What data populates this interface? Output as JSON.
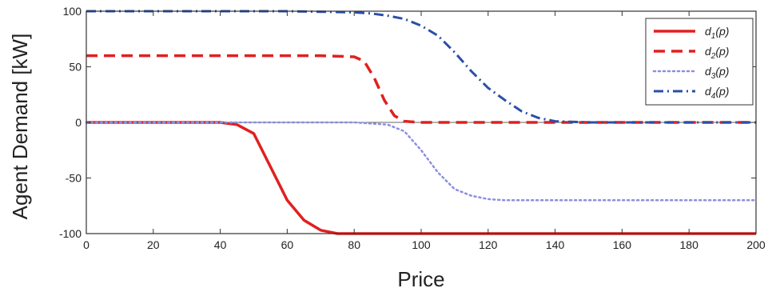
{
  "chart_data": {
    "type": "line",
    "title": "",
    "xlabel": "Price",
    "ylabel": "Agent Demand [kW]",
    "xlim": [
      0,
      200
    ],
    "ylim": [
      -100,
      100
    ],
    "xticks": [
      0,
      20,
      40,
      60,
      80,
      100,
      120,
      140,
      160,
      180,
      200
    ],
    "yticks": [
      -100,
      -50,
      0,
      50,
      100
    ],
    "grid": false,
    "legend_position": "top-right",
    "zero_line": true,
    "series": [
      {
        "name": "d1(p)",
        "legend_main": "d",
        "legend_sub": "1",
        "legend_tail": "(p)",
        "color": "#e02020",
        "style": "solid",
        "x": [
          0,
          10,
          20,
          30,
          40,
          45,
          50,
          55,
          60,
          65,
          70,
          75,
          80,
          90,
          100,
          120,
          140,
          160,
          180,
          200
        ],
        "y": [
          0,
          0,
          0,
          0,
          0,
          -2,
          -10,
          -40,
          -70,
          -88,
          -97,
          -100,
          -100,
          -100,
          -100,
          -100,
          -100,
          -100,
          -100,
          -100
        ]
      },
      {
        "name": "d2(p)",
        "legend_main": "d",
        "legend_sub": "2",
        "legend_tail": "(p)",
        "color": "#e02020",
        "style": "dashed",
        "x": [
          0,
          20,
          40,
          60,
          70,
          80,
          83,
          86,
          89,
          92,
          95,
          100,
          120,
          140,
          160,
          180,
          200
        ],
        "y": [
          60,
          60,
          60,
          60,
          60,
          59,
          55,
          40,
          20,
          6,
          1,
          0,
          0,
          0,
          0,
          0,
          0
        ]
      },
      {
        "name": "d3(p)",
        "legend_main": "d",
        "legend_sub": "3",
        "legend_tail": "(p)",
        "color": "#8a8fe0",
        "style": "dotted",
        "x": [
          0,
          20,
          40,
          60,
          80,
          90,
          95,
          100,
          105,
          110,
          115,
          120,
          125,
          130,
          140,
          160,
          180,
          200
        ],
        "y": [
          0,
          0,
          0,
          0,
          0,
          -2,
          -8,
          -25,
          -45,
          -60,
          -66,
          -69,
          -70,
          -70,
          -70,
          -70,
          -70,
          -70
        ]
      },
      {
        "name": "d4(p)",
        "legend_main": "d",
        "legend_sub": "4",
        "legend_tail": "(p)",
        "color": "#2a4fa8",
        "style": "dashdot",
        "x": [
          0,
          20,
          40,
          60,
          80,
          85,
          90,
          95,
          100,
          105,
          110,
          115,
          120,
          125,
          130,
          135,
          140,
          150,
          160,
          180,
          200
        ],
        "y": [
          100,
          100,
          100,
          100,
          99,
          98,
          96,
          93,
          87,
          78,
          63,
          46,
          31,
          20,
          10,
          4,
          1,
          0,
          0,
          0,
          0
        ]
      }
    ]
  }
}
